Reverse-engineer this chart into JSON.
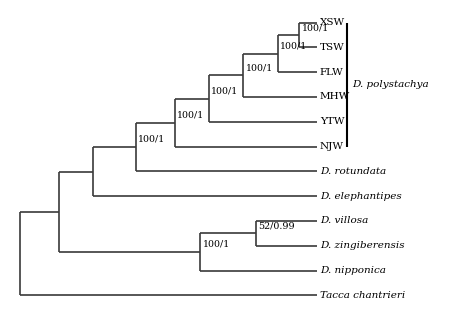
{
  "background_color": "#ffffff",
  "taxa": [
    "XSW",
    "TSW",
    "FLW",
    "MHW",
    "YTW",
    "NJW",
    "D. rotundata",
    "D. elephantipes",
    "D. villosa",
    "D. zingiberensis",
    "D. nipponica",
    "Tacca chantrieri"
  ],
  "italic_taxa": [
    "D. rotundata",
    "D. elephantipes",
    "D. villosa",
    "D. zingiberensis",
    "D. nipponica",
    "Tacca chantrieri"
  ],
  "line_color": "#3a3a3a",
  "line_width": 1.2,
  "font_size": 7.5,
  "label_font_size": 6.8,
  "polystachya_label": "D. polystachya"
}
